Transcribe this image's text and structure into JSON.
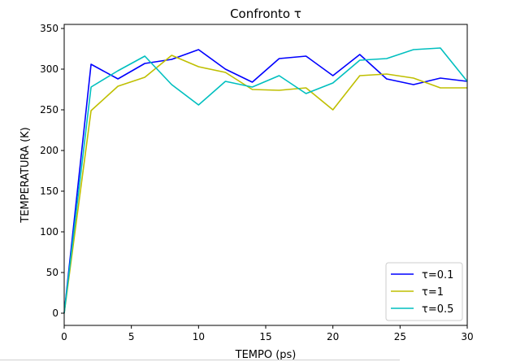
{
  "chart_data": {
    "type": "line",
    "title": "Confronto τ",
    "xlabel": "TEMPO (ps)",
    "ylabel": "TEMPERATURA (K)",
    "xlim": [
      0,
      30
    ],
    "ylim": [
      -15,
      355
    ],
    "xticks": [
      0,
      5,
      10,
      15,
      20,
      25,
      30
    ],
    "yticks": [
      0,
      50,
      100,
      150,
      200,
      250,
      300,
      350
    ],
    "grid": false,
    "legend_position": "lower-right",
    "x": [
      0,
      2,
      4,
      6,
      8,
      10,
      12,
      14,
      16,
      18,
      20,
      22,
      24,
      26,
      28,
      30
    ],
    "series": [
      {
        "name": "τ=0.1",
        "color": "#0000ff",
        "values": [
          0,
          306,
          288,
          307,
          312,
          324,
          300,
          284,
          313,
          316,
          292,
          318,
          288,
          281,
          289,
          285
        ]
      },
      {
        "name": "τ=1",
        "color": "#bfbf00",
        "values": [
          0,
          249,
          279,
          290,
          317,
          303,
          296,
          275,
          274,
          277,
          250,
          292,
          294,
          289,
          277,
          277
        ]
      },
      {
        "name": "τ=0.5",
        "color": "#00bfbf",
        "values": [
          0,
          278,
          298,
          316,
          281,
          256,
          285,
          278,
          292,
          270,
          283,
          311,
          313,
          324,
          326,
          285
        ]
      }
    ]
  }
}
